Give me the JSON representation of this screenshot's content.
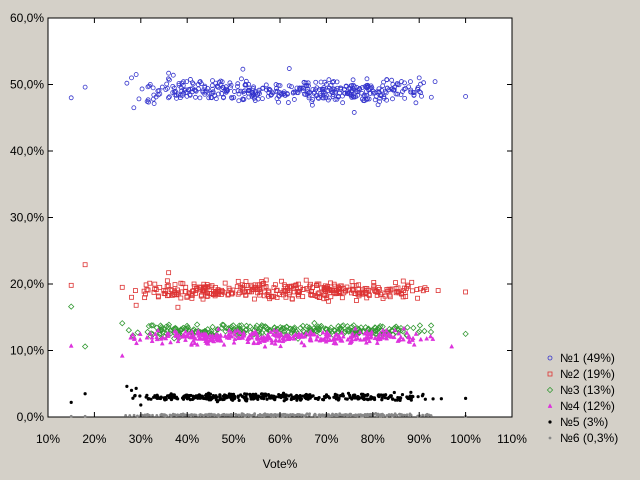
{
  "chart_data": {
    "type": "scatter",
    "title": "",
    "xlabel": "Vote%",
    "ylabel": "",
    "xlim": [
      10,
      110
    ],
    "ylim": [
      0,
      60
    ],
    "x_ticks": [
      10,
      20,
      30,
      40,
      50,
      60,
      70,
      80,
      90,
      100,
      110
    ],
    "x_tick_labels": [
      "10%",
      "20%",
      "30%",
      "40%",
      "50%",
      "60%",
      "70%",
      "80%",
      "90%",
      "100%",
      "110%"
    ],
    "y_ticks": [
      0,
      10,
      20,
      30,
      40,
      50,
      60
    ],
    "y_tick_labels": [
      "0,0%",
      "10,0%",
      "20,0%",
      "30,0%",
      "40,0%",
      "50,0%",
      "60,0%"
    ],
    "grid": false,
    "legend_position": "bottom-right",
    "series": [
      {
        "name": "№1 (49%)",
        "marker": "circle",
        "color": "#3333cc",
        "cluster": {
          "x_range": [
            26,
            96
          ],
          "y_center": 49.0,
          "y_spread": 1.4
        },
        "points": [
          [
            15,
            48.0
          ],
          [
            18,
            49.6
          ],
          [
            27,
            50.2
          ],
          [
            28,
            51.0
          ],
          [
            28.5,
            46.5
          ],
          [
            29,
            51.5
          ],
          [
            36,
            51.7
          ],
          [
            37,
            51.4
          ],
          [
            52,
            52.3
          ],
          [
            62,
            52.4
          ],
          [
            76,
            45.8
          ],
          [
            90,
            51.0
          ],
          [
            100,
            48.2
          ]
        ]
      },
      {
        "name": "№2 (19%)",
        "marker": "square",
        "color": "#dd3333",
        "cluster": {
          "x_range": [
            26,
            95
          ],
          "y_center": 19.0,
          "y_spread": 1.1
        },
        "points": [
          [
            15,
            19.8
          ],
          [
            18,
            22.9
          ],
          [
            26,
            19.5
          ],
          [
            28,
            18.0
          ],
          [
            29,
            16.8
          ],
          [
            36,
            21.7
          ],
          [
            38,
            16.5
          ],
          [
            100,
            18.8
          ]
        ]
      },
      {
        "name": "№3 (13%)",
        "marker": "diamond",
        "color": "#339933",
        "cluster": {
          "x_range": [
            26,
            95
          ],
          "y_center": 13.0,
          "y_spread": 0.8
        },
        "points": [
          [
            15,
            16.6
          ],
          [
            18,
            10.6
          ],
          [
            26,
            14.1
          ],
          [
            100,
            12.5
          ]
        ]
      },
      {
        "name": "№4 (12%)",
        "marker": "triangle",
        "color": "#dd33dd",
        "cluster": {
          "x_range": [
            26,
            95
          ],
          "y_center": 12.0,
          "y_spread": 0.9
        },
        "points": [
          [
            15,
            10.7
          ],
          [
            26,
            9.2
          ],
          [
            97,
            10.6
          ]
        ]
      },
      {
        "name": "№5 (3%)",
        "marker": "dot",
        "color": "#000000",
        "cluster": {
          "x_range": [
            26,
            95
          ],
          "y_center": 3.0,
          "y_spread": 0.45
        },
        "points": [
          [
            15,
            2.2
          ],
          [
            18,
            3.5
          ],
          [
            27,
            4.6
          ],
          [
            28,
            4.0
          ],
          [
            29,
            4.3
          ],
          [
            30,
            1.8
          ],
          [
            100,
            2.8
          ]
        ]
      },
      {
        "name": "№6 (0,3%)",
        "marker": "dot",
        "color": "#888888",
        "cluster": {
          "x_range": [
            26,
            95
          ],
          "y_center": 0.3,
          "y_spread": 0.15
        },
        "points": [
          [
            15,
            0.1
          ],
          [
            18,
            0.1
          ],
          [
            100,
            0.1
          ]
        ]
      }
    ]
  }
}
